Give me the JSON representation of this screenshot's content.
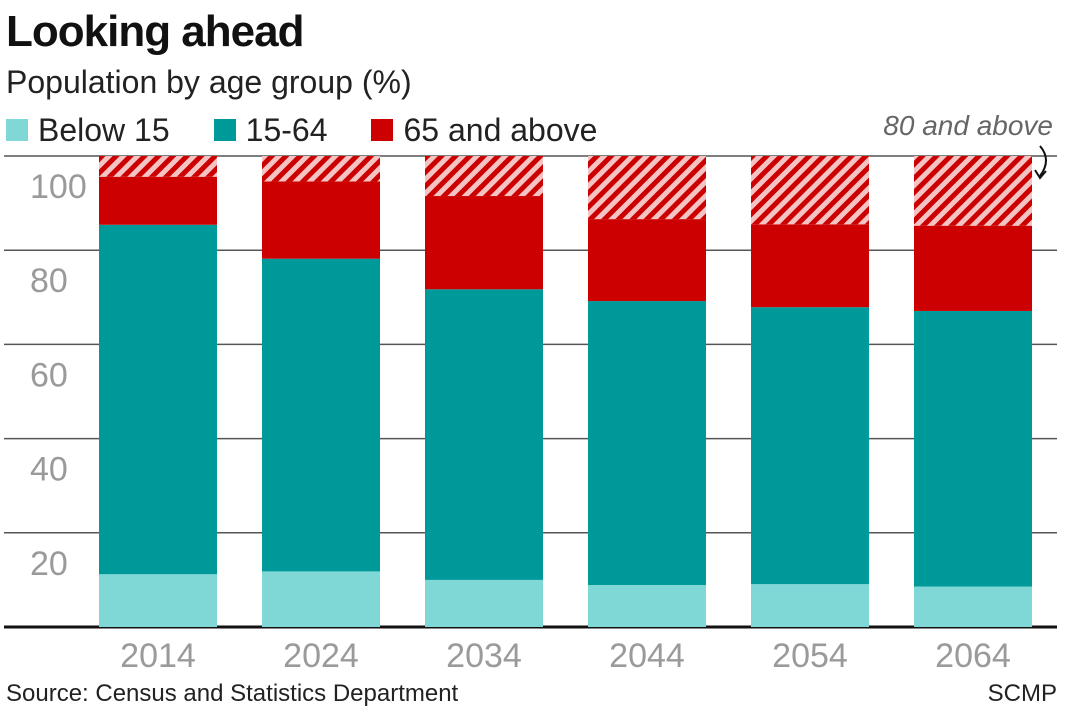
{
  "header": {
    "title": "Looking ahead",
    "subtitle": "Population by age group (%)"
  },
  "legend": [
    {
      "label": "Below 15",
      "color": "#7fd8d6"
    },
    {
      "label": "15-64",
      "color": "#00999a"
    },
    {
      "label": "65 and above",
      "color": "#cc0000"
    }
  ],
  "annotation": "80 and above",
  "footer": {
    "source": "Source: Census and Statistics Department",
    "credit": "SCMP"
  },
  "chart_data": {
    "type": "bar",
    "stacked": true,
    "categories": [
      "2014",
      "2024",
      "2034",
      "2044",
      "2054",
      "2064"
    ],
    "series": [
      {
        "name": "Below 15",
        "color": "#7fd8d6",
        "values": [
          11.2,
          11.8,
          10.0,
          8.9,
          9.1,
          8.6
        ]
      },
      {
        "name": "15-64",
        "color": "#00999a",
        "values": [
          74.2,
          66.4,
          61.7,
          60.3,
          58.8,
          58.5
        ]
      },
      {
        "name": "65 and above",
        "color": "#cc0000",
        "values": [
          10.2,
          16.4,
          19.8,
          17.4,
          17.6,
          18.1
        ]
      },
      {
        "name": "80 and above",
        "color": "#cc0000",
        "pattern": "hatched",
        "values": [
          4.4,
          5.4,
          8.5,
          13.4,
          14.5,
          14.8
        ]
      }
    ],
    "yticks": [
      20,
      40,
      60,
      80,
      100
    ],
    "ylim": [
      0,
      100
    ],
    "grid": true,
    "legend_position": "top-left"
  }
}
